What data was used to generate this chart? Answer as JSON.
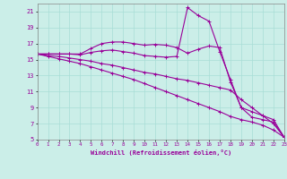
{
  "xlabel": "Windchill (Refroidissement éolien,°C)",
  "background_color": "#cbeee8",
  "grid_color": "#a8ddd6",
  "line_color": "#990099",
  "xlim": [
    0,
    23
  ],
  "ylim": [
    5,
    22
  ],
  "xticks": [
    0,
    1,
    2,
    3,
    4,
    5,
    6,
    7,
    8,
    9,
    10,
    11,
    12,
    13,
    14,
    15,
    16,
    17,
    18,
    19,
    20,
    21,
    22,
    23
  ],
  "yticks": [
    5,
    7,
    9,
    11,
    13,
    15,
    17,
    19,
    21
  ],
  "line1_x": [
    0,
    1,
    2,
    3,
    4,
    5,
    6,
    7,
    8,
    9,
    10,
    11,
    12,
    13,
    14,
    15,
    16,
    17,
    18,
    19,
    20,
    21,
    22,
    23
  ],
  "line1_y": [
    15.7,
    15.7,
    15.7,
    15.7,
    15.7,
    16.4,
    17.0,
    17.2,
    17.2,
    17.0,
    16.8,
    16.9,
    16.8,
    16.5,
    15.8,
    16.3,
    16.7,
    16.5,
    12.2,
    9.0,
    7.8,
    7.5,
    7.2,
    5.3
  ],
  "line2_x": [
    0,
    1,
    2,
    3,
    4,
    5,
    6,
    7,
    8,
    9,
    10,
    11,
    12,
    13,
    14,
    15,
    16,
    17,
    18,
    19,
    20,
    21,
    22,
    23
  ],
  "line2_y": [
    15.7,
    15.7,
    15.7,
    15.7,
    15.6,
    15.9,
    16.1,
    16.2,
    16.0,
    15.8,
    15.5,
    15.4,
    15.3,
    15.4,
    21.5,
    20.5,
    19.8,
    16.0,
    12.5,
    9.0,
    8.5,
    8.0,
    7.5,
    5.3
  ],
  "line3_x": [
    0,
    1,
    2,
    3,
    4,
    5,
    6,
    7,
    8,
    9,
    10,
    11,
    12,
    13,
    14,
    15,
    16,
    17,
    18,
    19,
    20,
    21,
    22,
    23
  ],
  "line3_y": [
    15.7,
    15.5,
    15.4,
    15.2,
    15.0,
    14.8,
    14.5,
    14.3,
    14.0,
    13.7,
    13.4,
    13.2,
    12.9,
    12.6,
    12.4,
    12.1,
    11.8,
    11.5,
    11.2,
    10.0,
    9.0,
    8.0,
    7.0,
    5.3
  ],
  "line4_x": [
    0,
    1,
    2,
    3,
    4,
    5,
    6,
    7,
    8,
    9,
    10,
    11,
    12,
    13,
    14,
    15,
    16,
    17,
    18,
    19,
    20,
    21,
    22,
    23
  ],
  "line4_y": [
    15.7,
    15.4,
    15.1,
    14.8,
    14.5,
    14.1,
    13.7,
    13.3,
    12.9,
    12.5,
    12.0,
    11.5,
    11.0,
    10.5,
    10.0,
    9.5,
    9.0,
    8.5,
    7.9,
    7.5,
    7.2,
    6.8,
    6.2,
    5.3
  ]
}
